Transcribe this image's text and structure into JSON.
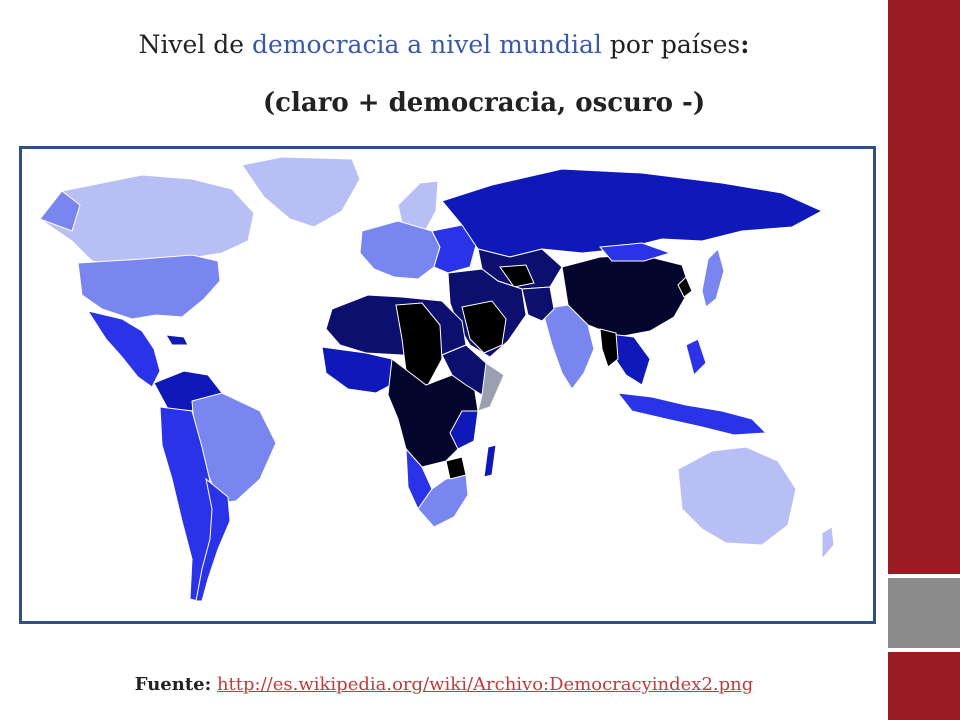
{
  "title": {
    "part1": "Nivel de ",
    "highlight": "democracia a nivel mundial",
    "part2": " por países",
    "colon": ":"
  },
  "subtitle": "(claro + democracia, oscuro -)",
  "source": {
    "label": "Fuente:",
    "link": "http://es.wikipedia.org/wiki/Archivo:Democracyindex2.png"
  },
  "map": {
    "legend_scale": [
      "#b8bff5",
      "#7a86f0",
      "#2a33e8",
      "#0f18b8",
      "#0c0f6e",
      "#05062e",
      "#000000"
    ]
  },
  "colors": {
    "accent_red": "#9b1c22",
    "accent_gray": "#8c8c8c",
    "frame": "#2f4f8a",
    "highlight_text": "#3a5aa8",
    "link": "#c23a3a"
  }
}
